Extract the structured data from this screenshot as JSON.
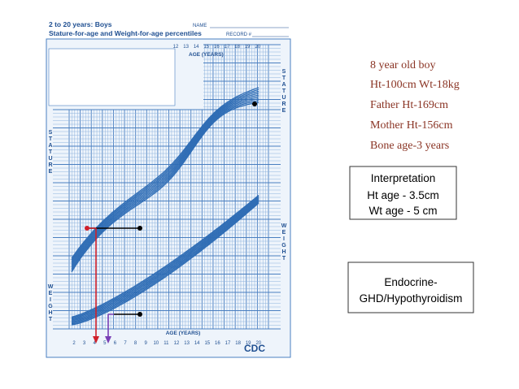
{
  "growth_chart": {
    "title": "2 to 20 years: Boys",
    "subtitle": "Stature-for-age and Weight-for-age percentiles",
    "name_label": "NAME",
    "record_label": "RECORD #",
    "age_axis_label": "AGE (YEARS)",
    "stature_label": "STATURE",
    "weight_label": "WEIGHT",
    "logo": "CDC",
    "age_ticks_top": [
      12,
      13,
      14,
      15,
      16,
      17,
      18,
      19,
      20
    ],
    "age_ticks_bottom": [
      2,
      3,
      4,
      5,
      6,
      7,
      8,
      9,
      10,
      11,
      12,
      13,
      14,
      15,
      16,
      17,
      18,
      19,
      20
    ]
  },
  "case_notes": [
    "8 year old boy",
    "Ht-100cm  Wt-18kg",
    "Father Ht-169cm",
    "Mother Ht-156cm",
    "Bone age-3 years"
  ],
  "interpretation": {
    "title": "Interpretation",
    "lines": [
      "Ht age - 3.5cm",
      "Wt age - 5 cm"
    ]
  },
  "diagnosis": {
    "lines": [
      "Endocrine-",
      "GHD/Hypothyroidism"
    ]
  }
}
